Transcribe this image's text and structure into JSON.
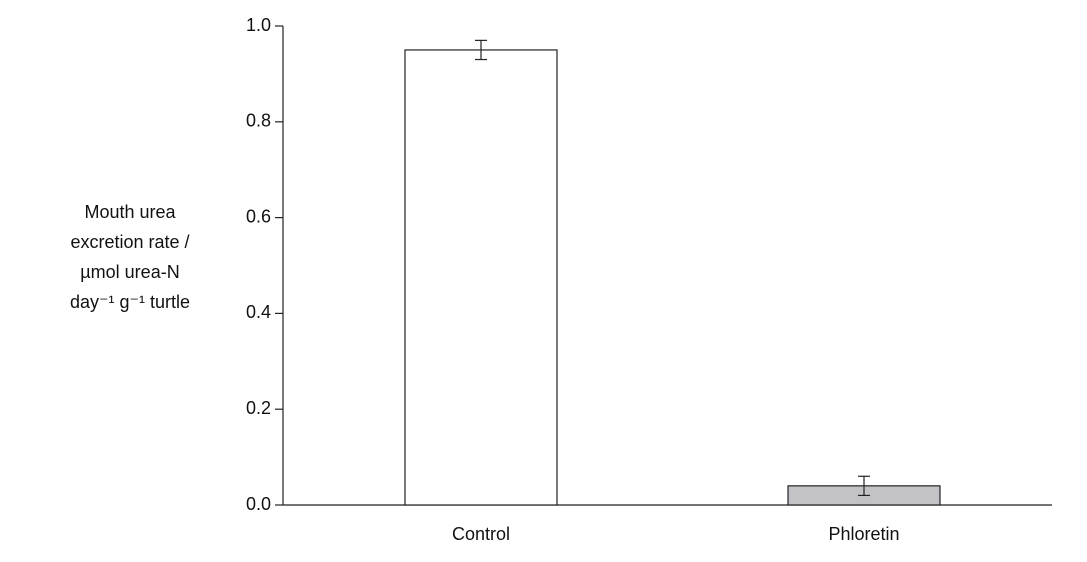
{
  "chart_data": {
    "type": "bar",
    "ylabel": [
      "Mouth urea",
      "excretion rate /",
      "µmol urea-N",
      "day⁻¹ g⁻¹ turtle"
    ],
    "categories": [
      "Control",
      "Phloretin"
    ],
    "values": [
      0.95,
      0.04
    ],
    "errors": [
      0.02,
      0.02
    ],
    "colors": [
      "#ffffff",
      "#c3c3c7"
    ],
    "ylim": [
      0,
      1
    ],
    "yticks": [
      {
        "value": 0,
        "label": "0.0"
      },
      0.2,
      0.4,
      0.6,
      0.8,
      {
        "value": 1,
        "label": "1.0"
      }
    ]
  }
}
